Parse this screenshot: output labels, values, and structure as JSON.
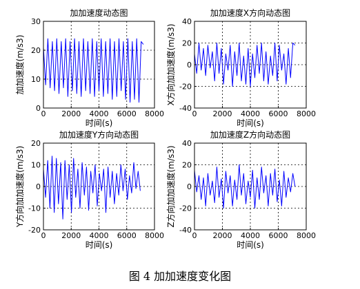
{
  "caption": "图 4  加加速度变化图",
  "colors": {
    "line": "#0000ff",
    "axis": "#000000",
    "grid": "#000000"
  },
  "chart_data": [
    {
      "type": "line",
      "title": "加加速度动态图",
      "xlabel": "时间(s)",
      "ylabel": "加加速度(m/s3)",
      "xlim": [
        0,
        8000
      ],
      "ylim": [
        0,
        30
      ],
      "xticks": [
        0,
        2000,
        4000,
        6000,
        8000
      ],
      "yticks": [
        0,
        10,
        20,
        30
      ],
      "grid": true,
      "series": [
        {
          "x": [
            0,
            160,
            320,
            480,
            640,
            800,
            960,
            1120,
            1280,
            1440,
            1600,
            1760,
            1920,
            2080,
            2240,
            2400,
            2560,
            2720,
            2880,
            3040,
            3200,
            3360,
            3520,
            3680,
            3840,
            4000,
            4160,
            4320,
            4480,
            4640,
            4800,
            4960,
            5120,
            5280,
            5440,
            5600,
            5760,
            5920,
            6080,
            6240,
            6400,
            6560,
            6720,
            6880,
            7040,
            7200
          ],
          "y": [
            21,
            8,
            24,
            7,
            23,
            6,
            24,
            5,
            23,
            7,
            24,
            4,
            23,
            6,
            24,
            5,
            23,
            4,
            24,
            6,
            23,
            5,
            24,
            4,
            23,
            6,
            24,
            4,
            23,
            5,
            24,
            3,
            23,
            4,
            24,
            6,
            23,
            3,
            24,
            2,
            23,
            3,
            24,
            2,
            23,
            22
          ]
        }
      ]
    },
    {
      "type": "line",
      "title": "加加速度X方向动态图",
      "xlabel": "时间(s)",
      "ylabel": "X方向加加速度(m/s3)",
      "xlim": [
        0,
        8000
      ],
      "ylim": [
        -40,
        40
      ],
      "xticks": [
        0,
        2000,
        4000,
        6000,
        8000
      ],
      "yticks": [
        -40,
        -20,
        0,
        20,
        40
      ],
      "grid": true,
      "series": [
        {
          "x": [
            0,
            160,
            320,
            480,
            640,
            800,
            960,
            1120,
            1280,
            1440,
            1600,
            1760,
            1920,
            2080,
            2240,
            2400,
            2560,
            2720,
            2880,
            3040,
            3200,
            3360,
            3520,
            3680,
            3840,
            4000,
            4160,
            4320,
            4480,
            4640,
            4800,
            4960,
            5120,
            5280,
            5440,
            5600,
            5760,
            5920,
            6080,
            6240,
            6400,
            6560,
            6720,
            6880,
            7040,
            7200
          ],
          "y": [
            10,
            -8,
            20,
            -5,
            15,
            -10,
            18,
            -3,
            12,
            -15,
            20,
            -8,
            15,
            -18,
            10,
            -5,
            18,
            -20,
            12,
            -10,
            20,
            -15,
            8,
            -18,
            15,
            -20,
            10,
            -12,
            18,
            -8,
            20,
            -15,
            12,
            -18,
            8,
            -10,
            20,
            -15,
            18,
            -5,
            10,
            -18,
            15,
            -12,
            20,
            18
          ]
        }
      ]
    },
    {
      "type": "line",
      "title": "加加速度Y方向动态图",
      "xlabel": "时间(s)",
      "ylabel": "Y方向加加速度(m/s3)",
      "xlim": [
        0,
        8000
      ],
      "ylim": [
        -20,
        20
      ],
      "xticks": [
        0,
        2000,
        4000,
        6000,
        8000
      ],
      "yticks": [
        -20,
        -10,
        0,
        10,
        20
      ],
      "grid": true,
      "series": [
        {
          "x": [
            0,
            155,
            310,
            465,
            620,
            775,
            930,
            1085,
            1240,
            1395,
            1550,
            1705,
            1860,
            2015,
            2170,
            2325,
            2480,
            2635,
            2790,
            2945,
            3100,
            3255,
            3410,
            3565,
            3720,
            3875,
            4030,
            4185,
            4340,
            4495,
            4650,
            4805,
            4960,
            5115,
            5270,
            5425,
            5580,
            5735,
            5890,
            6045,
            6200,
            6355,
            6510,
            6665,
            6820,
            6975
          ],
          "y": [
            8,
            -5,
            12,
            -10,
            14,
            -12,
            13,
            -8,
            11,
            -15,
            12,
            -6,
            10,
            -12,
            13,
            -5,
            8,
            -10,
            11,
            -4,
            9,
            -11,
            7,
            -3,
            10,
            -9,
            6,
            -2,
            8,
            -12,
            9,
            -5,
            7,
            -8,
            6,
            -4,
            10,
            -2,
            8,
            -6,
            5,
            -3,
            11,
            -1,
            7,
            -2
          ]
        }
      ]
    },
    {
      "type": "line",
      "title": "加加速度Z方向动态图",
      "xlabel": "时间(s)",
      "ylabel": "Z方向加加速度(m/s3)",
      "xlim": [
        0,
        8000
      ],
      "ylim": [
        -40,
        40
      ],
      "xticks": [
        0,
        2000,
        4000,
        6000,
        8000
      ],
      "yticks": [
        -40,
        -20,
        0,
        20,
        40
      ],
      "grid": true,
      "series": [
        {
          "x": [
            0,
            160,
            320,
            480,
            640,
            800,
            960,
            1120,
            1280,
            1440,
            1600,
            1760,
            1920,
            2080,
            2240,
            2400,
            2560,
            2720,
            2880,
            3040,
            3200,
            3360,
            3520,
            3680,
            3840,
            4000,
            4160,
            4320,
            4480,
            4640,
            4800,
            4960,
            5120,
            5280,
            5440,
            5600,
            5760,
            5920,
            6080,
            6240,
            6400,
            6560,
            6720,
            6880,
            7040,
            7200
          ],
          "y": [
            15,
            -5,
            10,
            -12,
            8,
            -18,
            12,
            -8,
            5,
            -15,
            18,
            -10,
            7,
            -20,
            14,
            -6,
            10,
            -18,
            6,
            -12,
            20,
            -8,
            12,
            -16,
            5,
            -10,
            15,
            -20,
            8,
            -12,
            18,
            -6,
            10,
            -18,
            12,
            -8,
            16,
            -14,
            6,
            -18,
            14,
            -10,
            8,
            -5,
            12,
            0
          ]
        }
      ]
    }
  ]
}
